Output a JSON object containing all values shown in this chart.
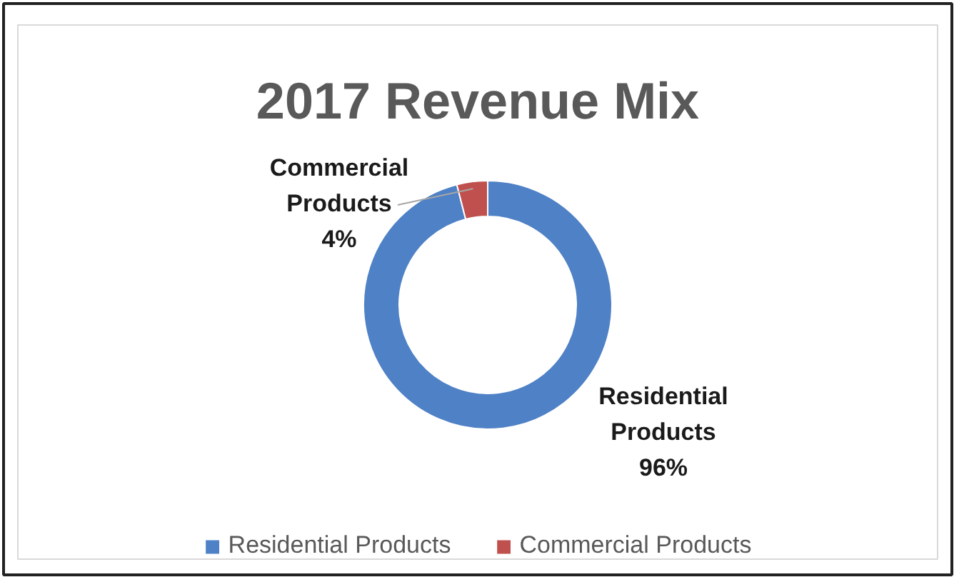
{
  "chart_data": {
    "type": "donut",
    "title": "2017 Revenue Mix",
    "categories": [
      "Residential Products",
      "Commercial Products"
    ],
    "values": [
      96,
      4
    ],
    "colors": [
      "#4f81c6",
      "#c0504d"
    ],
    "value_labels": [
      "96%",
      "4%"
    ],
    "legend": "bottom"
  }
}
